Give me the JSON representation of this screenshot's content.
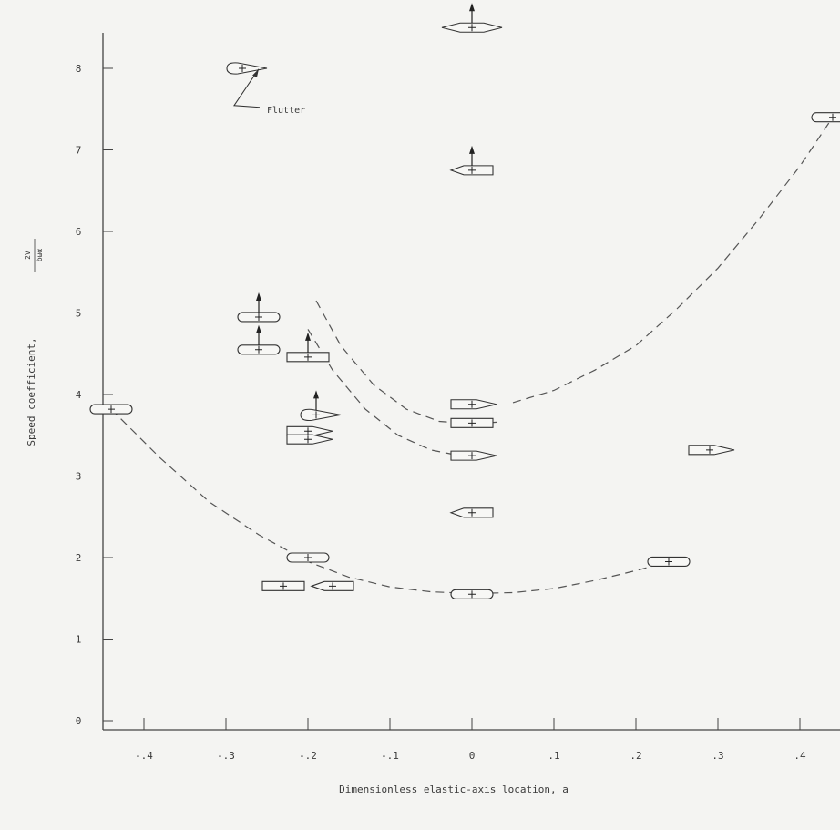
{
  "chart_data": {
    "type": "scatter",
    "title": "",
    "xlabel": "Dimensionless elastic-axis location,  a",
    "ylabel": "Speed coefficient,",
    "ylabel_fraction": {
      "numerator": "2V",
      "denominator": "bωα"
    },
    "xlim": [
      -0.45,
      0.45
    ],
    "ylim": [
      0,
      8.6
    ],
    "grid": false,
    "legend": "none",
    "x_ticks": [
      -0.4,
      -0.3,
      -0.2,
      -0.1,
      0,
      0.1,
      0.2,
      0.3,
      0.4
    ],
    "x_tick_labels": [
      "-.4",
      "-.3",
      "-.2",
      "-.1",
      "0",
      ".1",
      ".2",
      ".3",
      ".4"
    ],
    "y_ticks": [
      0,
      1,
      2,
      3,
      4,
      5,
      6,
      7,
      8
    ],
    "y_tick_labels": [
      "0",
      "1",
      "2",
      "3",
      "4",
      "5",
      "6",
      "7",
      "8"
    ],
    "annotations": [
      {
        "text": "Flutter",
        "x": -0.25,
        "y": 7.5
      }
    ],
    "glyphs": [
      {
        "x": -0.44,
        "y": 3.82,
        "shape": "round",
        "dir": "right"
      },
      {
        "x": -0.28,
        "y": 8.0,
        "shape": "airfoil",
        "dir": "right"
      },
      {
        "x": -0.26,
        "y": 4.95,
        "shape": "round",
        "dir": "right",
        "arrow": true
      },
      {
        "x": -0.26,
        "y": 4.55,
        "shape": "round",
        "dir": "right",
        "arrow": true
      },
      {
        "x": -0.2,
        "y": 4.46,
        "shape": "rect",
        "dir": "right",
        "arrow": true
      },
      {
        "x": -0.19,
        "y": 3.75,
        "shape": "airfoil",
        "dir": "right",
        "arrow": true
      },
      {
        "x": -0.2,
        "y": 3.55,
        "shape": "pointed",
        "dir": "right"
      },
      {
        "x": -0.2,
        "y": 3.45,
        "shape": "pointed",
        "dir": "right"
      },
      {
        "x": -0.2,
        "y": 2.0,
        "shape": "round",
        "dir": "right"
      },
      {
        "x": -0.23,
        "y": 1.65,
        "shape": "rect",
        "dir": "right"
      },
      {
        "x": -0.17,
        "y": 1.65,
        "shape": "pointed",
        "dir": "left"
      },
      {
        "x": 0.0,
        "y": 8.5,
        "shape": "double",
        "dir": "right",
        "arrow": true
      },
      {
        "x": 0.0,
        "y": 6.75,
        "shape": "pointed",
        "dir": "left",
        "arrow": true
      },
      {
        "x": 0.0,
        "y": 3.88,
        "shape": "pointed",
        "dir": "right"
      },
      {
        "x": 0.0,
        "y": 3.65,
        "shape": "rect",
        "dir": "right"
      },
      {
        "x": 0.0,
        "y": 3.25,
        "shape": "pointed",
        "dir": "right"
      },
      {
        "x": 0.0,
        "y": 2.55,
        "shape": "pointed",
        "dir": "left"
      },
      {
        "x": 0.0,
        "y": 1.55,
        "shape": "round",
        "dir": "right"
      },
      {
        "x": 0.24,
        "y": 1.95,
        "shape": "round",
        "dir": "right"
      },
      {
        "x": 0.29,
        "y": 3.32,
        "shape": "pointed",
        "dir": "right"
      },
      {
        "x": 0.44,
        "y": 7.4,
        "shape": "round",
        "dir": "right"
      }
    ],
    "series": [
      {
        "style": "dashed",
        "x": [
          -0.44,
          -0.38,
          -0.32,
          -0.26,
          -0.2,
          -0.15,
          -0.1,
          -0.05,
          0.0,
          0.05,
          0.1,
          0.15,
          0.2,
          0.24
        ],
        "y": [
          3.82,
          3.22,
          2.68,
          2.28,
          1.95,
          1.76,
          1.64,
          1.58,
          1.56,
          1.57,
          1.62,
          1.72,
          1.84,
          1.95
        ]
      },
      {
        "style": "dashed",
        "x": [
          -0.19,
          -0.16,
          -0.12,
          -0.08,
          -0.04,
          0.0,
          0.03
        ],
        "y": [
          5.15,
          4.6,
          4.12,
          3.82,
          3.67,
          3.64,
          3.66
        ]
      },
      {
        "style": "dashed",
        "x": [
          -0.2,
          -0.17,
          -0.13,
          -0.09,
          -0.05,
          -0.02,
          0.0
        ],
        "y": [
          4.8,
          4.3,
          3.82,
          3.5,
          3.32,
          3.26,
          3.25
        ]
      },
      {
        "style": "dashed",
        "x": [
          0.05,
          0.1,
          0.15,
          0.2,
          0.25,
          0.3,
          0.35,
          0.4,
          0.44
        ],
        "y": [
          3.9,
          4.05,
          4.3,
          4.6,
          5.05,
          5.55,
          6.15,
          6.8,
          7.4
        ]
      }
    ]
  }
}
